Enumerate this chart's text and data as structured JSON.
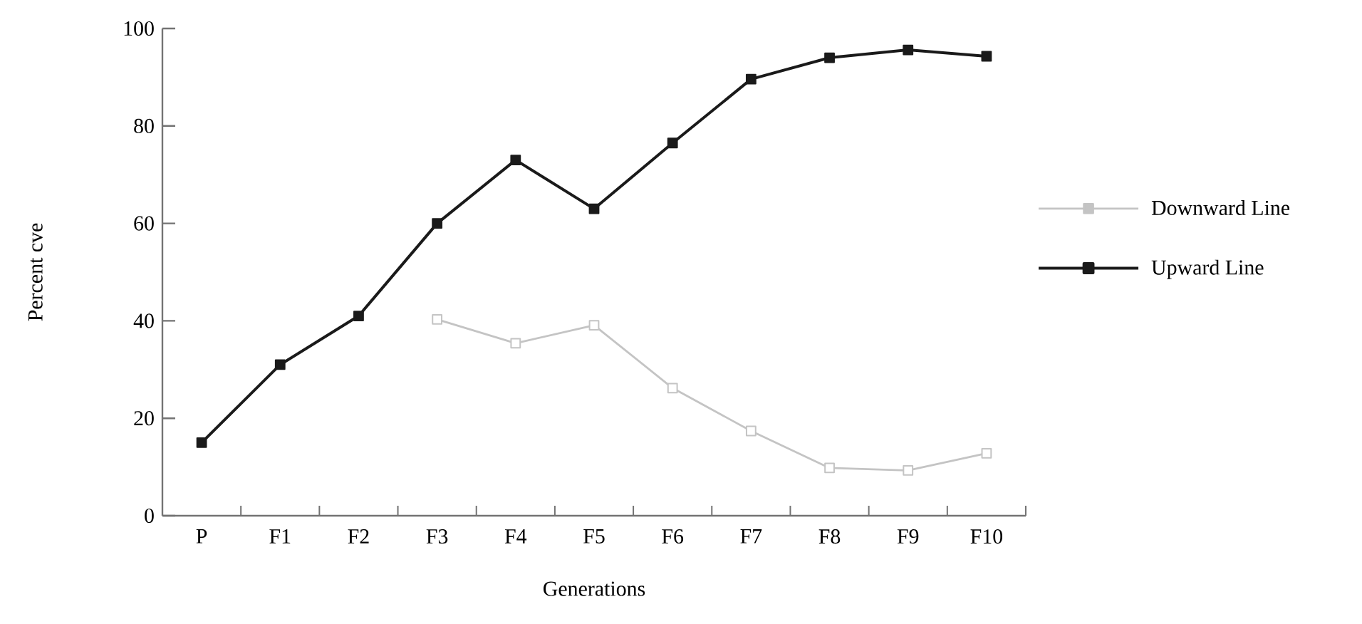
{
  "chart_data": {
    "type": "line",
    "xlabel": "Generations",
    "ylabel": "Percent cve",
    "categories": [
      "P",
      "F1",
      "F2",
      "F3",
      "F4",
      "F5",
      "F6",
      "F7",
      "F8",
      "F9",
      "F10"
    ],
    "series": [
      {
        "name": "Downward Line",
        "color": "#c4c4c4",
        "values": [
          null,
          null,
          null,
          40.3,
          35.4,
          39.1,
          26.2,
          17.4,
          9.8,
          9.3,
          12.8
        ]
      },
      {
        "name": "Upward Line",
        "color": "#1a1a1a",
        "values": [
          15,
          31,
          41,
          60,
          73,
          63,
          76.5,
          89.6,
          94,
          95.6,
          94.3
        ]
      }
    ],
    "ylim": [
      0,
      100
    ],
    "yticks": [
      0,
      20,
      40,
      60,
      80,
      100
    ],
    "marker": "square",
    "line_style": "solid",
    "legend": "right",
    "grid": false
  }
}
